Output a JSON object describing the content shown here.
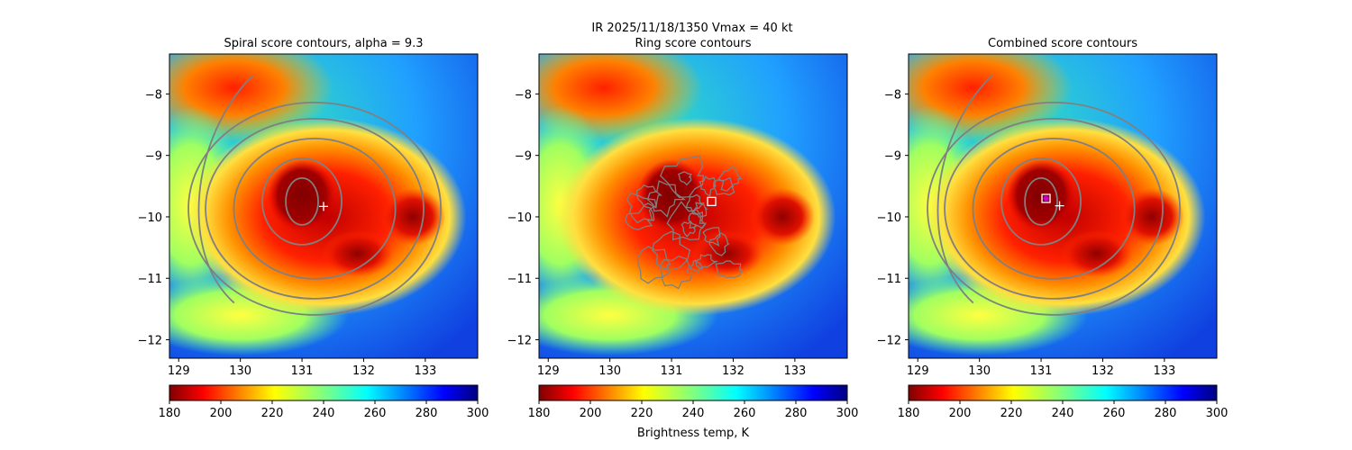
{
  "figure": {
    "suptitle_line1": "IR  2025/11/18/1350    Vmax = 40 kt",
    "colorbar_label": "Brightness temp, K"
  },
  "panel_titles": [
    "Spiral score contours, alpha =  9.3",
    "Ring score contours",
    "Combined score contours"
  ],
  "chart_data": [
    {
      "type": "heatmap",
      "title": "Spiral score contours, alpha =  9.3",
      "xlim": [
        128.85,
        133.85
      ],
      "ylim": [
        -12.3,
        -7.35
      ],
      "xticks": [
        129,
        130,
        131,
        132,
        133
      ],
      "yticks": [
        -8,
        -9,
        -10,
        -11,
        -12
      ],
      "xticklabels": [
        "129",
        "130",
        "131",
        "132",
        "133"
      ],
      "yticklabels": [
        "−8",
        "−9",
        "−10",
        "−11",
        "−12"
      ],
      "colorbar": {
        "min": 180,
        "max": 300,
        "ticks": [
          180,
          200,
          220,
          240,
          260,
          280,
          300
        ],
        "colormap": "jet_r"
      },
      "markers": [
        {
          "symbol": "plus",
          "lon": 131.35,
          "lat": -9.83,
          "color": "#ffffff"
        }
      ],
      "contour_center": {
        "lon": 131.0,
        "lat": -9.75
      },
      "contour_color": "#808080"
    },
    {
      "type": "heatmap",
      "title": "Ring score contours",
      "xlim": [
        128.85,
        133.85
      ],
      "ylim": [
        -12.3,
        -7.35
      ],
      "xticks": [
        129,
        130,
        131,
        132,
        133
      ],
      "yticks": [
        -8,
        -9,
        -10,
        -11,
        -12
      ],
      "xticklabels": [
        "129",
        "130",
        "131",
        "132",
        "133"
      ],
      "yticklabels": [
        "−8",
        "−9",
        "−10",
        "−11",
        "−12"
      ],
      "colorbar": {
        "min": 180,
        "max": 300,
        "ticks": [
          180,
          200,
          220,
          240,
          260,
          280,
          300
        ],
        "colormap": "jet_r"
      },
      "markers": [
        {
          "symbol": "square",
          "lon": 131.65,
          "lat": -9.75,
          "color": "#ffffff"
        }
      ],
      "contour_center": {
        "lon": 131.3,
        "lat": -9.9
      },
      "contour_color": "#808080"
    },
    {
      "type": "heatmap",
      "title": "Combined score contours",
      "xlim": [
        128.85,
        133.85
      ],
      "ylim": [
        -12.3,
        -7.35
      ],
      "xticks": [
        129,
        130,
        131,
        132,
        133
      ],
      "yticks": [
        -8,
        -9,
        -10,
        -11,
        -12
      ],
      "xticklabels": [
        "129",
        "130",
        "131",
        "132",
        "133"
      ],
      "yticklabels": [
        "−8",
        "−9",
        "−10",
        "−11",
        "−12"
      ],
      "colorbar": {
        "min": 180,
        "max": 300,
        "ticks": [
          180,
          200,
          220,
          240,
          260,
          280,
          300
        ],
        "colormap": "jet_r"
      },
      "markers": [
        {
          "symbol": "plus",
          "lon": 131.3,
          "lat": -9.82,
          "color": "#ffffff"
        },
        {
          "symbol": "square",
          "lon": 131.08,
          "lat": -9.7,
          "color": "#ffffff"
        },
        {
          "symbol": "dot",
          "lon": 131.08,
          "lat": -9.7,
          "color": "#cc00cc"
        }
      ],
      "contour_center": {
        "lon": 131.0,
        "lat": -9.75
      },
      "contour_color": "#808080"
    }
  ]
}
